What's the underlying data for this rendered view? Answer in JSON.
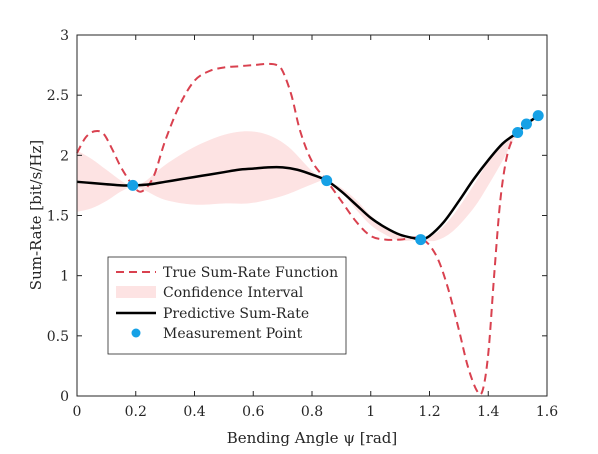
{
  "chart_data": {
    "type": "line",
    "title": "",
    "xlabel": "Bending Angle ψ [rad]",
    "ylabel": "Sum-Rate [bit/s/Hz]",
    "xlim": [
      0,
      1.6
    ],
    "ylim": [
      0,
      3
    ],
    "xticks": [
      0,
      0.2,
      0.4,
      0.6,
      0.8,
      1,
      1.2,
      1.4,
      1.6
    ],
    "xtick_labels": [
      "0",
      "0.2",
      "0.4",
      "0.6",
      "0.8",
      "1",
      "1.2",
      "1.4",
      "1.6"
    ],
    "yticks": [
      0,
      0.5,
      1,
      1.5,
      2,
      2.5,
      3
    ],
    "ytick_labels": [
      "0",
      "0.5",
      "1",
      "1.5",
      "2",
      "2.5",
      "3"
    ],
    "grid": false,
    "legend_position": "bottom-left",
    "colors": {
      "true_function": "#d9414f",
      "confidence": "#fde3e3",
      "predictive": "#000000",
      "measurement": "#16a1e6"
    },
    "series": [
      {
        "name": "True Sum-Rate Function",
        "style": "dashed",
        "x": [
          0,
          0.03,
          0.06,
          0.09,
          0.12,
          0.15,
          0.19,
          0.22,
          0.26,
          0.3,
          0.35,
          0.4,
          0.45,
          0.5,
          0.55,
          0.6,
          0.65,
          0.68,
          0.7,
          0.73,
          0.76,
          0.8,
          0.85,
          0.9,
          0.95,
          1.0,
          1.05,
          1.1,
          1.17,
          1.22,
          1.26,
          1.3,
          1.33,
          1.36,
          1.38,
          1.4,
          1.42,
          1.44,
          1.46,
          1.48,
          1.5,
          1.53,
          1.57
        ],
        "y": [
          2.02,
          2.15,
          2.2,
          2.18,
          2.05,
          1.9,
          1.75,
          1.7,
          1.82,
          2.12,
          2.42,
          2.62,
          2.7,
          2.73,
          2.74,
          2.75,
          2.76,
          2.75,
          2.7,
          2.5,
          2.2,
          1.95,
          1.79,
          1.62,
          1.45,
          1.33,
          1.3,
          1.3,
          1.31,
          1.18,
          0.92,
          0.55,
          0.25,
          0.05,
          0.04,
          0.35,
          1.0,
          1.6,
          1.95,
          2.12,
          2.19,
          2.26,
          2.33
        ]
      },
      {
        "name": "Confidence Interval",
        "style": "band",
        "x": [
          0,
          0.05,
          0.1,
          0.15,
          0.19,
          0.23,
          0.3,
          0.4,
          0.5,
          0.58,
          0.65,
          0.72,
          0.8,
          0.85,
          0.9,
          0.95,
          1.0,
          1.05,
          1.1,
          1.17,
          1.22,
          1.28,
          1.35,
          1.4,
          1.45,
          1.5,
          1.53,
          1.57
        ],
        "lower": [
          1.53,
          1.56,
          1.62,
          1.7,
          1.74,
          1.71,
          1.63,
          1.59,
          1.6,
          1.6,
          1.63,
          1.68,
          1.76,
          1.79,
          1.7,
          1.55,
          1.42,
          1.34,
          1.29,
          1.3,
          1.29,
          1.37,
          1.56,
          1.75,
          1.96,
          2.19,
          2.26,
          2.33
        ],
        "upper": [
          2.04,
          1.97,
          1.88,
          1.79,
          1.74,
          1.78,
          1.92,
          2.07,
          2.17,
          2.2,
          2.17,
          2.07,
          1.87,
          1.79,
          1.73,
          1.63,
          1.5,
          1.4,
          1.33,
          1.3,
          1.35,
          1.5,
          1.75,
          1.95,
          2.1,
          2.19,
          2.26,
          2.33
        ]
      },
      {
        "name": "Predictive Sum-Rate",
        "style": "solid",
        "x": [
          0,
          0.05,
          0.1,
          0.15,
          0.19,
          0.25,
          0.3,
          0.35,
          0.4,
          0.45,
          0.5,
          0.55,
          0.6,
          0.65,
          0.7,
          0.75,
          0.8,
          0.85,
          0.9,
          0.95,
          1.0,
          1.05,
          1.1,
          1.15,
          1.17,
          1.2,
          1.25,
          1.3,
          1.35,
          1.4,
          1.45,
          1.5,
          1.53,
          1.57
        ],
        "y": [
          1.78,
          1.77,
          1.76,
          1.75,
          1.75,
          1.76,
          1.78,
          1.8,
          1.82,
          1.84,
          1.86,
          1.88,
          1.89,
          1.9,
          1.9,
          1.88,
          1.84,
          1.79,
          1.7,
          1.59,
          1.48,
          1.4,
          1.34,
          1.31,
          1.3,
          1.33,
          1.45,
          1.62,
          1.8,
          1.96,
          2.1,
          2.19,
          2.26,
          2.33
        ]
      },
      {
        "name": "Measurement Point",
        "style": "markers",
        "x": [
          0.19,
          0.85,
          1.17,
          1.5,
          1.53,
          1.57
        ],
        "y": [
          1.75,
          1.79,
          1.3,
          2.19,
          2.26,
          2.33
        ]
      }
    ]
  }
}
